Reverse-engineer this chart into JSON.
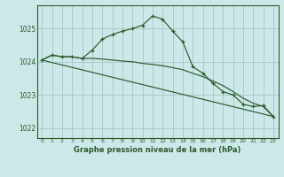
{
  "bg_color": "#cce8e8",
  "grid_color": "#aacccc",
  "line_color": "#2d5a2d",
  "title": "Graphe pression niveau de la mer (hPa)",
  "xlim": [
    -0.5,
    23.5
  ],
  "ylim": [
    1021.7,
    1025.7
  ],
  "yticks": [
    1022,
    1023,
    1024,
    1025
  ],
  "xticks": [
    0,
    1,
    2,
    3,
    4,
    5,
    6,
    7,
    8,
    9,
    10,
    11,
    12,
    13,
    14,
    15,
    16,
    17,
    18,
    19,
    20,
    21,
    22,
    23
  ],
  "series1_x": [
    0,
    1,
    2,
    3,
    4,
    5,
    6,
    7,
    8,
    9,
    10,
    11,
    12,
    13,
    14,
    15,
    16,
    17,
    18,
    19,
    20,
    21,
    22,
    23
  ],
  "series1_y": [
    1024.05,
    1024.2,
    1024.15,
    1024.15,
    1024.1,
    1024.35,
    1024.68,
    1024.82,
    1024.92,
    1025.0,
    1025.1,
    1025.38,
    1025.28,
    1024.92,
    1024.6,
    1023.85,
    1023.65,
    1023.35,
    1023.1,
    1023.0,
    1022.72,
    1022.65,
    1022.68,
    1022.35
  ],
  "series2_x": [
    0,
    1,
    2,
    3,
    4,
    5,
    6,
    7,
    8,
    9,
    10,
    11,
    12,
    13,
    14,
    15,
    16,
    17,
    18,
    19,
    20,
    21,
    22,
    23
  ],
  "series2_y": [
    1024.05,
    1024.2,
    1024.15,
    1024.15,
    1024.1,
    1024.1,
    1024.08,
    1024.05,
    1024.02,
    1024.0,
    1023.95,
    1023.92,
    1023.88,
    1023.82,
    1023.76,
    1023.65,
    1023.55,
    1023.42,
    1023.28,
    1023.1,
    1022.9,
    1022.75,
    1022.65,
    1022.35
  ],
  "series3_x": [
    0,
    23
  ],
  "series3_y": [
    1024.05,
    1022.35
  ]
}
